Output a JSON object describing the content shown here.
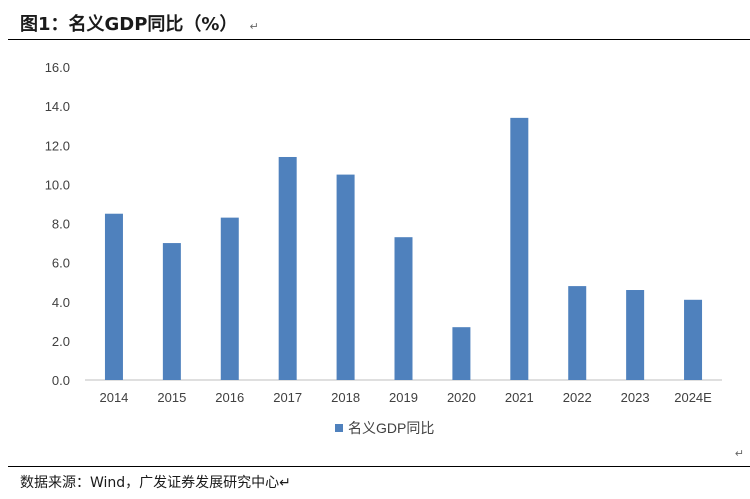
{
  "title": "图1：名义GDP同比（%）",
  "para_mark": "↵",
  "source": "数据来源：Wind，广发证券发展研究中心↵",
  "end_mark": "↵",
  "chart_data": {
    "type": "bar",
    "title": "",
    "xlabel": "",
    "ylabel": "",
    "categories": [
      "2014",
      "2015",
      "2016",
      "2017",
      "2018",
      "2019",
      "2020",
      "2021",
      "2022",
      "2023",
      "2024E"
    ],
    "series": [
      {
        "name": "名义GDP同比",
        "values": [
          8.5,
          7.0,
          8.3,
          11.4,
          10.5,
          7.3,
          2.7,
          13.4,
          4.8,
          4.6,
          4.1
        ]
      }
    ],
    "ylim": [
      0,
      16
    ],
    "yticks": [
      "0.0",
      "2.0",
      "4.0",
      "6.0",
      "8.0",
      "10.0",
      "12.0",
      "14.0",
      "16.0"
    ],
    "grid": false,
    "legend_position": "bottom",
    "bar_color": "#4F81BD",
    "axis_color": "#BFBFBF"
  }
}
